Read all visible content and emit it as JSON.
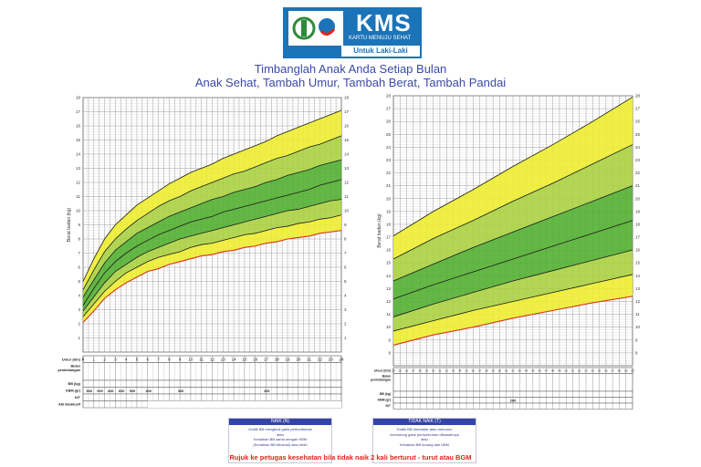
{
  "header": {
    "kms": "KMS",
    "subtitle": "KARTU MENUJU SEHAT",
    "gender": "Untuk Laki-Laki",
    "title_line1": "Timbanglah Anak Anda Setiap Bulan",
    "title_line2": "Anak Sehat, Tambah Umur, Tambah Berat, Tambah Pandai"
  },
  "colors": {
    "yellow": "#eded2c",
    "light_green": "#a9d23d",
    "green": "#4fae2c",
    "bgm_line": "#d3341d",
    "title": "#3b4aa8",
    "header_blue": "#1b73b8"
  },
  "left_table": {
    "rows": [
      "Umur (bln)",
      "Bulan\npenimbangan",
      "BB (kg)",
      "KBM (gr)",
      "N/T",
      "ASI Eksklusif"
    ],
    "kbm_values": [
      "800",
      "900",
      "800",
      "600",
      "500",
      "400",
      "",
      "300",
      "",
      "",
      "",
      "",
      "200"
    ]
  },
  "right_table": {
    "rows": [
      "Umur (bln)",
      "Bulan\npenimbangan",
      "BB (kg)",
      "KBM (gr)",
      "N/T"
    ],
    "kbm_value": "200"
  },
  "notes": {
    "naik_title": "NAIK (N)",
    "naik_lines": [
      "Grafik BB mengikuti garis pertumbuhan",
      "atau",
      "Kenaikan BB sama dengan KBM",
      "(Kenaikan BB Minimal) atau lebih"
    ],
    "tidak_title": "TIDAK NAIK (T)",
    "tidak_lines": [
      "Grafik BB mendatar atau menurun",
      "memotong garis pertumbuhan dibawahnya",
      "atau",
      "Kenaikan BB kurang dari KBM"
    ]
  },
  "footer": "Rujuk ke petugas kesehatan bila tidak naik 2 kali berturut - turut atau BGM",
  "chart_data": [
    {
      "type": "area",
      "title": "",
      "xlabel": "Umur (bln)",
      "ylabel": "Berat badan (kg)",
      "xlim": [
        0,
        24
      ],
      "ylim": [
        0,
        18
      ],
      "x": [
        0,
        1,
        2,
        3,
        4,
        5,
        6,
        7,
        8,
        9,
        10,
        11,
        12,
        13,
        14,
        15,
        16,
        17,
        18,
        19,
        20,
        21,
        22,
        23,
        24
      ],
      "x_ticks": [
        0,
        1,
        2,
        3,
        4,
        5,
        6,
        7,
        8,
        9,
        10,
        11,
        12,
        13,
        14,
        15,
        16,
        17,
        18,
        19,
        20,
        21,
        22,
        23,
        24
      ],
      "y_ticks": [
        1,
        2,
        3,
        4,
        5,
        6,
        7,
        8,
        9,
        10,
        11,
        12,
        13,
        14,
        15,
        16,
        17,
        18
      ],
      "series": [
        {
          "values": [
            2.1,
            2.9,
            3.8,
            4.4,
            4.9,
            5.3,
            5.7,
            5.9,
            6.2,
            6.4,
            6.6,
            6.8,
            6.9,
            7.1,
            7.2,
            7.4,
            7.5,
            7.7,
            7.8,
            8.0,
            8.1,
            8.2,
            8.4,
            8.5,
            8.6
          ]
        },
        {
          "values": [
            2.5,
            3.4,
            4.3,
            5.0,
            5.6,
            6.0,
            6.4,
            6.7,
            6.9,
            7.1,
            7.4,
            7.6,
            7.7,
            7.9,
            8.1,
            8.3,
            8.4,
            8.6,
            8.8,
            8.9,
            9.1,
            9.2,
            9.4,
            9.5,
            9.7
          ]
        },
        {
          "values": [
            2.9,
            3.9,
            4.9,
            5.7,
            6.2,
            6.7,
            7.1,
            7.4,
            7.7,
            8.0,
            8.2,
            8.4,
            8.6,
            8.8,
            9.0,
            9.2,
            9.4,
            9.6,
            9.8,
            10.0,
            10.1,
            10.3,
            10.5,
            10.7,
            10.8
          ]
        },
        {
          "values": [
            3.3,
            4.5,
            5.6,
            6.4,
            7.0,
            7.5,
            7.9,
            8.3,
            8.6,
            8.9,
            9.2,
            9.4,
            9.6,
            9.9,
            10.1,
            10.3,
            10.5,
            10.7,
            10.9,
            11.1,
            11.3,
            11.5,
            11.8,
            12.0,
            12.2
          ]
        },
        {
          "values": [
            3.9,
            5.1,
            6.3,
            7.2,
            7.8,
            8.4,
            8.8,
            9.2,
            9.6,
            9.9,
            10.2,
            10.5,
            10.8,
            11.0,
            11.3,
            11.5,
            11.7,
            12.0,
            12.2,
            12.5,
            12.7,
            12.9,
            13.2,
            13.4,
            13.6
          ]
        },
        {
          "values": [
            4.4,
            5.8,
            7.1,
            8.0,
            8.7,
            9.3,
            9.8,
            10.3,
            10.7,
            11.0,
            11.4,
            11.7,
            12.0,
            12.3,
            12.6,
            12.8,
            13.1,
            13.4,
            13.7,
            13.9,
            14.2,
            14.5,
            14.7,
            15.0,
            15.3
          ]
        },
        {
          "values": [
            5.0,
            6.6,
            8.0,
            9.0,
            9.7,
            10.4,
            10.9,
            11.4,
            11.9,
            12.3,
            12.7,
            13.0,
            13.3,
            13.7,
            14.0,
            14.3,
            14.6,
            14.9,
            15.3,
            15.6,
            15.9,
            16.2,
            16.5,
            16.8,
            17.1
          ]
        }
      ]
    },
    {
      "type": "area",
      "title": "",
      "xlabel": "Umur (bln)",
      "ylabel": "Berat badan (kg)",
      "xlim": [
        24,
        60
      ],
      "ylim": [
        7,
        28
      ],
      "x": [
        24,
        30,
        36,
        42,
        48,
        54,
        60
      ],
      "x_ticks": [
        24,
        25,
        26,
        27,
        28,
        29,
        30,
        31,
        32,
        33,
        34,
        35,
        36,
        37,
        38,
        39,
        40,
        41,
        42,
        43,
        44,
        45,
        46,
        47,
        48,
        49,
        50,
        51,
        52,
        53,
        54,
        55,
        56,
        57,
        58,
        59,
        60
      ],
      "y_ticks": [
        8,
        9,
        10,
        11,
        12,
        13,
        14,
        15,
        16,
        17,
        18,
        19,
        20,
        21,
        22,
        23,
        24,
        25,
        26,
        27,
        28
      ],
      "series": [
        {
          "values": [
            8.6,
            9.4,
            10.0,
            10.7,
            11.3,
            11.9,
            12.4
          ]
        },
        {
          "values": [
            9.7,
            10.5,
            11.3,
            12.0,
            12.7,
            13.4,
            14.1
          ]
        },
        {
          "values": [
            10.8,
            11.8,
            12.7,
            13.6,
            14.4,
            15.2,
            16.0
          ]
        },
        {
          "values": [
            12.2,
            13.3,
            14.3,
            15.3,
            16.3,
            17.3,
            18.3
          ]
        },
        {
          "values": [
            13.6,
            14.9,
            16.2,
            17.4,
            18.6,
            19.8,
            21.0
          ]
        },
        {
          "values": [
            15.3,
            16.9,
            18.3,
            19.8,
            21.2,
            22.7,
            24.2
          ]
        },
        {
          "values": [
            17.1,
            19.0,
            20.7,
            22.5,
            24.2,
            26.0,
            27.9
          ]
        }
      ]
    }
  ]
}
